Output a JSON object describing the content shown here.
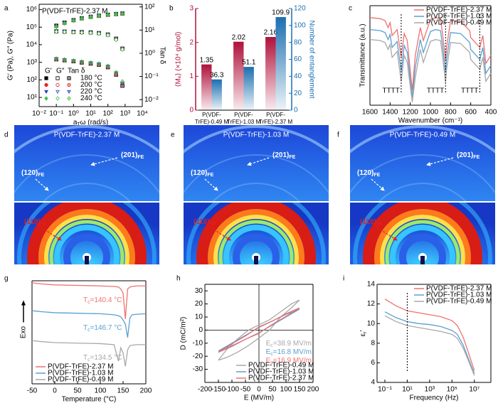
{
  "chart_data": [
    {
      "panel": "a",
      "type": "rheology",
      "title": "P(VDF-TrFE)-2.37 M",
      "xlabel": [
        "a",
        "T",
        "ω (rad/s)"
      ],
      "ylabel": "G′ (Pa), G″ (Pa)",
      "y2label": "Tan δ",
      "xscale": "log",
      "yscale": "log",
      "xlim": [
        0.01,
        10000
      ],
      "xticks": [
        {
          "value": 0.01,
          "label": "10⁻²"
        },
        {
          "value": 0.1,
          "label": "10⁻¹"
        },
        {
          "value": 1,
          "label": "10⁰"
        },
        {
          "value": 10,
          "label": "10¹"
        },
        {
          "value": 100,
          "label": "10²"
        },
        {
          "value": 1000,
          "label": "10³"
        },
        {
          "value": 10000,
          "label": "10⁴"
        }
      ],
      "ylim": [
        3,
        2000000
      ],
      "yticks": [
        {
          "value": 10,
          "label": "10¹"
        },
        {
          "value": 100,
          "label": "10²"
        },
        {
          "value": 1000,
          "label": "10³"
        },
        {
          "value": 10000,
          "label": "10⁴"
        },
        {
          "value": 100000,
          "label": "10⁵"
        },
        {
          "value": 1000000,
          "label": "10⁶"
        }
      ],
      "y2lim": [
        0.005,
        130
      ],
      "y2ticks": [
        {
          "value": 0.01,
          "label": "10⁻²"
        },
        {
          "value": 0.1,
          "label": "10⁻¹"
        },
        {
          "value": 1,
          "label": "10⁰"
        },
        {
          "value": 10,
          "label": "10¹"
        },
        {
          "value": 100,
          "label": "10²"
        }
      ],
      "legend_headers": [
        "G′",
        "G″",
        "Tan δ"
      ],
      "x": [
        0.1,
        0.3,
        1,
        3,
        10,
        30,
        100,
        300,
        700
      ],
      "groups": [
        {
          "name": "180 °C",
          "color": "#000000",
          "Gp": [
            120000,
            180000,
            250000,
            320000,
            390000,
            450000,
            510000,
            560000,
            600000
          ],
          "Gpp": [
            58000,
            56000,
            54000,
            52000,
            50000,
            46000,
            38000,
            22000,
            6000
          ],
          "tan": [
            0.55,
            0.5,
            0.45,
            0.4,
            0.36,
            0.32,
            0.25,
            0.12,
            0.04
          ]
        },
        {
          "name": "200 °C",
          "color": "#e8202a",
          "Gp": [
            115000,
            175000,
            245000,
            315000,
            385000,
            445000,
            505000,
            555000,
            590000
          ],
          "Gpp": [
            57000,
            55000,
            53000,
            51000,
            49000,
            45000,
            37000,
            21000,
            5800
          ],
          "tan": [
            0.56,
            0.51,
            0.46,
            0.41,
            0.37,
            0.33,
            0.26,
            0.13,
            0.05
          ]
        },
        {
          "name": "220 °C",
          "color": "#1f3fbf",
          "Gp": [
            110000,
            170000,
            240000,
            310000,
            380000,
            440000,
            500000,
            550000,
            585000
          ],
          "Gpp": [
            56000,
            54000,
            52000,
            50000,
            48000,
            44000,
            36000,
            20000,
            5600
          ],
          "tan": [
            0.57,
            0.52,
            0.47,
            0.42,
            0.38,
            0.34,
            0.27,
            0.14,
            0.05
          ]
        },
        {
          "name": "240 °C",
          "color": "#3ec23e",
          "Gp": [
            105000,
            165000,
            235000,
            305000,
            375000,
            435000,
            495000,
            545000,
            580000
          ],
          "Gpp": [
            55000,
            53000,
            51000,
            49000,
            47000,
            43000,
            35000,
            19000,
            5400
          ],
          "tan": [
            0.58,
            0.53,
            0.48,
            0.43,
            0.39,
            0.35,
            0.28,
            0.15,
            0.06
          ]
        }
      ]
    },
    {
      "panel": "b",
      "type": "dual_bar",
      "categories": [
        "P(VDF-TrFE)-0.49 M",
        "P(VDF-TrFE)-1.03 M",
        "P(VDF-TrFE)-2.37 M"
      ],
      "ylabel": "⟨Mₑ⟩ (×10⁴ g/mol)",
      "y2label": "Number of entanglement",
      "ylim": [
        0,
        3
      ],
      "yticks": [
        0,
        1,
        2,
        3
      ],
      "y2lim": [
        0,
        120
      ],
      "y2ticks": [
        0,
        20,
        40,
        60,
        80,
        100,
        120
      ],
      "series": [
        {
          "color": "#b0103a",
          "values": [
            1.35,
            2.02,
            2.16
          ]
        },
        {
          "color": "#1a6fb0",
          "axis": "y2",
          "values": [
            36.3,
            51.1,
            109.9
          ]
        }
      ]
    },
    {
      "panel": "c",
      "type": "line",
      "xlabel": "Wavenumber (cm⁻¹)",
      "ylabel": "Transmittance (a.u.)",
      "xlim": [
        1600,
        400
      ],
      "xticks": [
        1600,
        1400,
        1200,
        1000,
        800,
        600,
        400
      ],
      "ylim": [
        0,
        10
      ],
      "legend": "upper right",
      "x": [
        1600,
        1500,
        1450,
        1420,
        1400,
        1380,
        1330,
        1290,
        1260,
        1230,
        1180,
        1150,
        1100,
        1070,
        1000,
        950,
        900,
        880,
        850,
        840,
        800,
        700,
        610,
        600,
        510,
        480,
        450,
        400
      ],
      "series": [
        {
          "name": "P(VDF-TrFE)-2.37 M",
          "color": "#f07070",
          "values": [
            8.8,
            8.7,
            8.5,
            7.8,
            8.3,
            7.0,
            7.6,
            4.8,
            7.2,
            6.5,
            1.5,
            5.0,
            7.8,
            6.5,
            8.6,
            8.8,
            8.7,
            7.2,
            4.5,
            5.8,
            8.5,
            8.4,
            7.5,
            6.8,
            5.8,
            7.0,
            4.2,
            5.0
          ]
        },
        {
          "name": "P(VDF-TrFE)-1.03 M",
          "color": "#5a9fd0",
          "values": [
            7.6,
            7.5,
            7.3,
            6.6,
            7.1,
            5.8,
            6.4,
            3.4,
            6.0,
            5.3,
            0.8,
            3.8,
            6.6,
            5.3,
            7.4,
            7.6,
            7.5,
            6.0,
            3.3,
            4.6,
            7.3,
            7.2,
            6.3,
            5.6,
            4.6,
            5.8,
            3.2,
            4.0
          ]
        },
        {
          "name": "P(VDF-TrFE)-0.49 M",
          "color": "#a8a8a8",
          "values": [
            6.6,
            6.5,
            6.3,
            5.6,
            6.1,
            4.8,
            5.4,
            2.4,
            5.0,
            4.3,
            0.3,
            2.8,
            5.6,
            4.3,
            6.4,
            6.6,
            6.5,
            5.0,
            2.3,
            3.6,
            6.3,
            6.2,
            5.3,
            4.6,
            3.6,
            4.8,
            2.4,
            3.2
          ]
        }
      ],
      "reference_lines": [
        1290,
        850,
        510
      ],
      "annotations": [
        "TTTT",
        "TTTT",
        "TTTT"
      ]
    },
    {
      "panel": "g",
      "type": "line",
      "xlabel": "Temperature (°C)",
      "ylabel": "Exo",
      "xlim": [
        -50,
        200
      ],
      "xticks": [
        -50,
        0,
        50,
        100,
        150,
        200
      ],
      "ylim": [
        0,
        10
      ],
      "legend": "lower left",
      "x": [
        -50,
        -30,
        0,
        50,
        100,
        130,
        140,
        145,
        150,
        155,
        160,
        165,
        170,
        180,
        200
      ],
      "series": [
        {
          "name": "P(VDF-TrFE)-2.37 M",
          "color": "#f07070",
          "values": [
            9.8,
            9.7,
            9.6,
            9.55,
            9.5,
            9.45,
            9.4,
            9.2,
            8.8,
            6.3,
            9.2,
            9.4,
            9.45,
            9.5,
            9.5
          ]
        },
        {
          "name": "P(VDF-TrFE)-1.03 M",
          "color": "#5a9fd0",
          "values": [
            7.1,
            7.0,
            6.9,
            6.85,
            6.8,
            6.7,
            6.6,
            6.5,
            6.2,
            5.8,
            4.5,
            6.4,
            6.7,
            6.75,
            6.8
          ]
        },
        {
          "name": "P(VDF-TrFE)-0.49 M",
          "color": "#a8a8a8",
          "values": [
            4.2,
            4.1,
            4.0,
            3.95,
            3.9,
            3.8,
            2.2,
            3.5,
            3.0,
            1.7,
            3.3,
            3.7,
            3.75,
            3.8,
            3.8
          ]
        }
      ],
      "annotations": [
        [
          "T",
          "c",
          "=140.4 °C"
        ],
        [
          "T",
          "c",
          "=146.7 °C"
        ],
        [
          "T",
          "c",
          "=134.5 °C"
        ]
      ]
    },
    {
      "panel": "h",
      "type": "loop",
      "xlabel": "E (MV/m)",
      "ylabel": "D (mC/m²)",
      "xlim": [
        -200,
        200
      ],
      "xticks": [
        -200,
        -150,
        -100,
        -50,
        0,
        50,
        100,
        150,
        200
      ],
      "ylim": [
        -40,
        35
      ],
      "yticks": [
        -30,
        -20,
        -10,
        0,
        10,
        20,
        30
      ],
      "legend": "lower right",
      "crosshair": true,
      "series": [
        {
          "name": "P(VDF-TrFE)-0.49 M",
          "color": "#a8a8a8",
          "x": [
            -150,
            -120,
            -80,
            -40,
            0,
            38.9,
            80,
            120,
            150,
            120,
            80,
            40,
            0,
            -38.9,
            -80,
            -120,
            -150
          ],
          "values": [
            -23,
            -21,
            -17,
            -12,
            -6,
            0,
            10,
            17,
            23,
            20,
            14,
            8,
            4,
            0,
            -7,
            -15,
            -23
          ]
        },
        {
          "name": "P(VDF-TrFE)-1.03 M",
          "color": "#5a9fd0",
          "x": [
            -150,
            -100,
            -50,
            0,
            16.8,
            50,
            100,
            150,
            100,
            50,
            0,
            -16.8,
            -50,
            -100,
            -150
          ],
          "values": [
            -16,
            -12,
            -7,
            -2,
            0,
            4,
            10,
            16,
            12,
            7,
            2,
            0,
            -4,
            -10,
            -16
          ]
        },
        {
          "name": "P(VDF-TrFE)-2.37 M",
          "color": "#f07070",
          "x": [
            -150,
            -100,
            -50,
            0,
            16.9,
            50,
            100,
            150,
            100,
            50,
            0,
            -16.9,
            -50,
            -100,
            -150
          ],
          "values": [
            -17,
            -12.5,
            -7,
            -2.5,
            0,
            4.5,
            10.5,
            17,
            12.5,
            7,
            2.5,
            0,
            -4.5,
            -10.5,
            -17
          ]
        }
      ],
      "annotations": [
        [
          "E",
          "c",
          "=38.9 MV/m"
        ],
        [
          "E",
          "c",
          "=16.8 MV/m"
        ],
        [
          "E",
          "c",
          "=16.9 MV/m"
        ]
      ]
    },
    {
      "panel": "i",
      "type": "line",
      "xlabel": "Frequency (Hz)",
      "ylabel": [
        "ε",
        "r",
        "′"
      ],
      "xscale": "log",
      "xlim": [
        0.02,
        300000000
      ],
      "xticks": [
        {
          "value": 0.1,
          "label": "10⁻¹"
        },
        {
          "value": 10,
          "label": "10¹"
        },
        {
          "value": 1000,
          "label": "10³"
        },
        {
          "value": 100000,
          "label": "10⁵"
        },
        {
          "value": 10000000,
          "label": "10⁷"
        }
      ],
      "ylim": [
        4,
        14
      ],
      "yticks": [
        4,
        6,
        8,
        10,
        12,
        14
      ],
      "legend": "upper right",
      "x": [
        0.1,
        1,
        10,
        100,
        1000,
        10000,
        100000,
        300000,
        1000000,
        3000000,
        10000000
      ],
      "series": [
        {
          "name": "P(VDF-TrFE)-2.37 M",
          "color": "#f07070",
          "values": [
            12.5,
            11.8,
            11.3,
            11.1,
            10.9,
            10.7,
            10.3,
            9.8,
            8.6,
            7.0,
            5.2
          ]
        },
        {
          "name": "P(VDF-TrFE)-1.03 M",
          "color": "#5a9fd0",
          "values": [
            11.2,
            10.6,
            10.2,
            10.0,
            9.9,
            9.7,
            9.3,
            8.9,
            7.8,
            6.4,
            4.9
          ]
        },
        {
          "name": "P(VDF-TrFE)-0.49 M",
          "color": "#a8a8a8",
          "values": [
            10.8,
            10.2,
            9.8,
            9.6,
            9.4,
            9.2,
            8.9,
            8.5,
            7.5,
            6.2,
            4.7
          ]
        }
      ],
      "reference_lines": [
        10
      ]
    }
  ],
  "images": [
    {
      "panel": "d",
      "title": "P(VDF-TrFE)-2.37 M",
      "labels": [
        [
          "(201)",
          "FE"
        ],
        [
          "(120)",
          "FE"
        ],
        [
          "(110)",
          "FE"
        ]
      ]
    },
    {
      "panel": "e",
      "title": "P(VDF-TrFE)-1.03 M",
      "labels": [
        [
          "(201)",
          "FE"
        ],
        [
          "(120)",
          "FE"
        ],
        [
          "(110)",
          "FE"
        ]
      ]
    },
    {
      "panel": "f",
      "title": "P(VDF-TrFE)-0.49 M",
      "labels": [
        [
          "(201)",
          "FE"
        ],
        [
          "(120)",
          "FE"
        ],
        [
          "(110)",
          "FE"
        ]
      ]
    }
  ]
}
